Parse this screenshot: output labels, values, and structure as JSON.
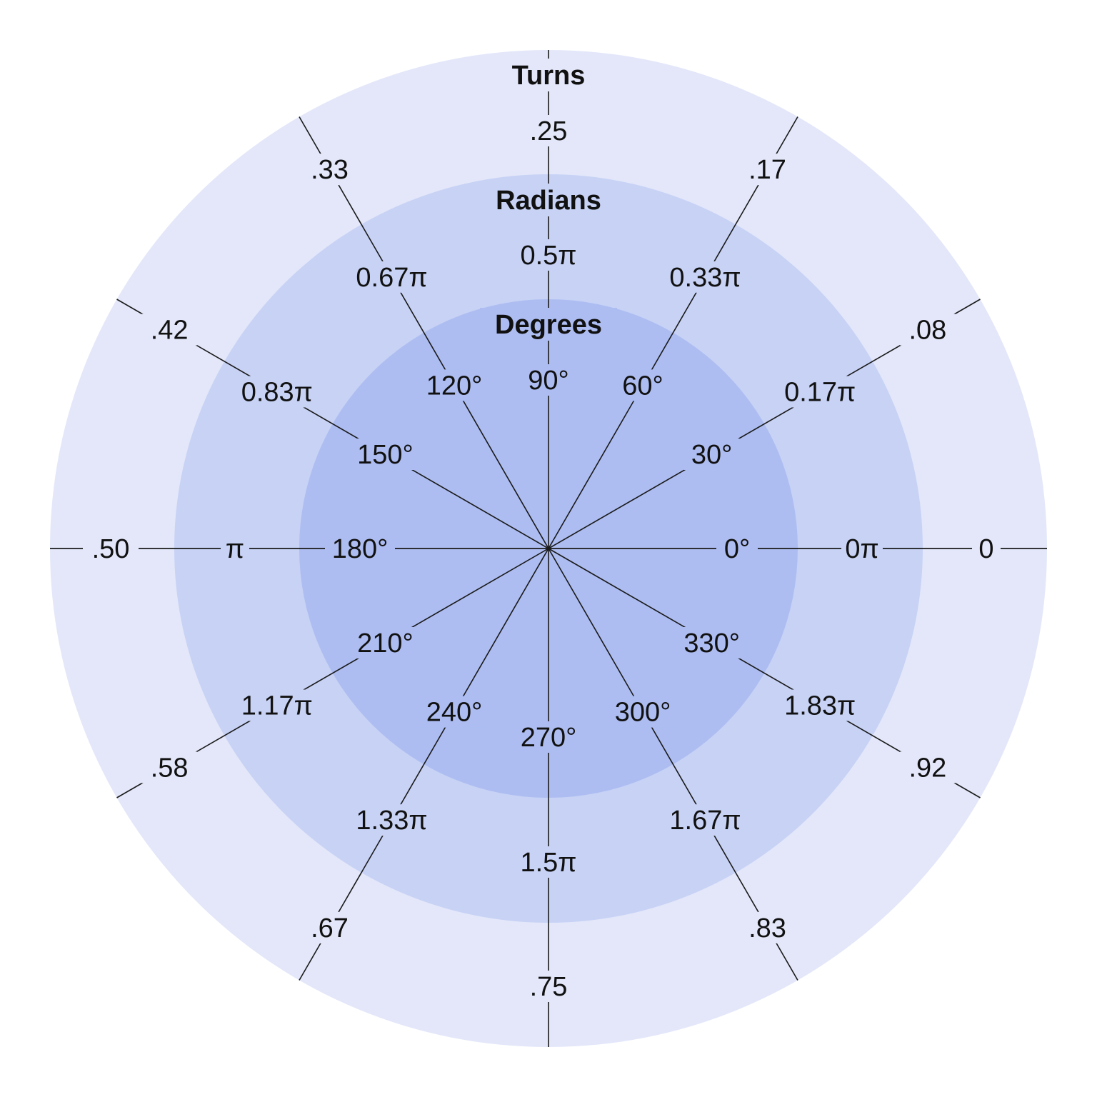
{
  "colors": {
    "outer_ring": "#e3e7f9",
    "middle_ring": "#c7d2f5",
    "inner_ring": "#adbdf1",
    "lines": "#1a1a1a",
    "text": "#111111"
  },
  "angles_deg": [
    0,
    30,
    60,
    90,
    120,
    150,
    180,
    210,
    240,
    270,
    300,
    330
  ],
  "rings": [
    {
      "key": "turns",
      "title": "Turns",
      "labels": [
        "0",
        ".08",
        ".17",
        ".25",
        ".33",
        ".42",
        ".50",
        ".58",
        ".67",
        ".75",
        ".83",
        ".92"
      ]
    },
    {
      "key": "radians",
      "title": "Radians",
      "labels": [
        "0π",
        "0.17π",
        "0.33π",
        "0.5π",
        "0.67π",
        "0.83π",
        "π",
        "1.17π",
        "1.33π",
        "1.5π",
        "1.67π",
        "1.83π"
      ]
    },
    {
      "key": "degrees",
      "title": "Degrees",
      "labels": [
        "0°",
        "30°",
        "60°",
        "90°",
        "120°",
        "150°",
        "180°",
        "210°",
        "240°",
        "270°",
        "300°",
        "330°"
      ]
    }
  ]
}
